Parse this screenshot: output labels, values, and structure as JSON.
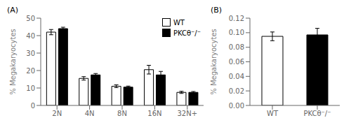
{
  "chart_data": [
    {
      "type": "bar",
      "title": "(A)",
      "ylabel": "% Megakaryocytes",
      "categories": [
        "2N",
        "4N",
        "8N",
        "16N",
        "32N+"
      ],
      "series": [
        {
          "name": "WT",
          "color": "white",
          "values": [
            42.0,
            15.5,
            11.0,
            20.5,
            7.5
          ],
          "errors": [
            1.5,
            1.0,
            0.8,
            2.5,
            0.6
          ]
        },
        {
          "name": "PKCθ⁻/⁻",
          "color": "black",
          "values": [
            44.0,
            17.5,
            10.5,
            17.5,
            7.5
          ],
          "errors": [
            0.8,
            0.8,
            0.6,
            2.0,
            0.5
          ]
        }
      ],
      "ylim": [
        0,
        50
      ],
      "yticks": [
        0,
        10,
        20,
        30,
        40,
        50
      ],
      "legend": "upper right",
      "grid": false
    },
    {
      "type": "bar",
      "title": "(B)",
      "ylabel": "% Megakaryocytes",
      "categories": [
        "WT",
        "PKCθ⁻/⁻"
      ],
      "values": [
        0.095,
        0.097
      ],
      "errors": [
        0.006,
        0.009
      ],
      "colors": [
        "white",
        "black"
      ],
      "ylim": [
        0,
        0.12
      ],
      "yticks": [
        {
          "value": 0,
          "label": "0.00"
        },
        {
          "value": 0.02,
          "label": "0.02"
        },
        {
          "value": 0.04,
          "label": "0.04"
        },
        {
          "value": 0.06,
          "label": "0.06"
        },
        {
          "value": 0.08,
          "label": "0.08"
        },
        {
          "value": 0.1,
          "label": "0.10"
        },
        {
          "value": 0.12,
          "label": "0.12"
        }
      ],
      "grid": false
    }
  ]
}
